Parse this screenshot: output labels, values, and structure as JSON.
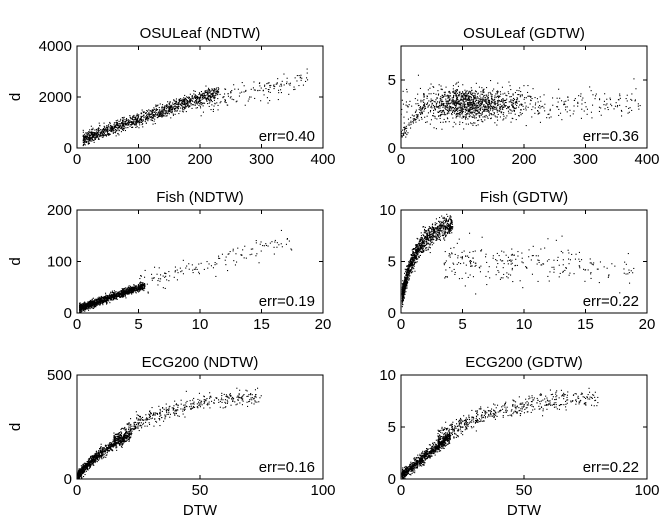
{
  "chart_data": [
    {
      "type": "scatter",
      "title": "OSULeaf (NDTW)",
      "xlabel": "",
      "ylabel": "d",
      "xlim": [
        0,
        400
      ],
      "ylim": [
        0,
        4000
      ],
      "xticks": [
        "0",
        "100",
        "200",
        "300",
        "400"
      ],
      "yticks": [
        "0",
        "2000",
        "4000"
      ],
      "annotation": "err=0.40",
      "point_count": 1400,
      "clusters": [
        {
          "kind": "band",
          "x": [
            10,
            230
          ],
          "y_at_x0": 250,
          "slope": 8.6,
          "spread": 220,
          "weight": 0.88
        },
        {
          "kind": "band",
          "x": [
            200,
            375
          ],
          "y_at_x0": 700,
          "slope": 5.2,
          "spread": 350,
          "weight": 0.12
        }
      ]
    },
    {
      "type": "scatter",
      "title": "OSULeaf (GDTW)",
      "xlabel": "",
      "ylabel": "",
      "xlim": [
        0,
        400
      ],
      "ylim": [
        0,
        7.5
      ],
      "xticks": [
        "0",
        "100",
        "200",
        "300",
        "400"
      ],
      "yticks": [
        "0",
        "5"
      ],
      "annotation": "err=0.36",
      "point_count": 1400,
      "clusters": [
        {
          "kind": "blob",
          "center": [
            110,
            3.2
          ],
          "radius": [
            75,
            1.1
          ],
          "weight": 0.82
        },
        {
          "kind": "band",
          "x": [
            0,
            40
          ],
          "y_at_x0": 1.0,
          "slope": 0.055,
          "spread": 0.45,
          "weight": 0.06
        },
        {
          "kind": "band",
          "x": [
            180,
            390
          ],
          "y_at_x0": 3.3,
          "slope": 0.0,
          "spread": 0.9,
          "weight": 0.12
        }
      ]
    },
    {
      "type": "scatter",
      "title": "Fish (NDTW)",
      "xlabel": "",
      "ylabel": "d",
      "xlim": [
        0,
        20
      ],
      "ylim": [
        0,
        200
      ],
      "xticks": [
        "0",
        "5",
        "10",
        "15",
        "20"
      ],
      "yticks": [
        "0",
        "100",
        "200"
      ],
      "annotation": "err=0.19",
      "point_count": 1400,
      "clusters": [
        {
          "kind": "band",
          "x": [
            0.2,
            5.5
          ],
          "y_at_x0": 8,
          "slope": 8.2,
          "spread": 6,
          "weight": 0.9
        },
        {
          "kind": "band",
          "x": [
            5,
            17.5
          ],
          "y_at_x0": 20,
          "slope": 7.0,
          "spread": 18,
          "weight": 0.1
        }
      ]
    },
    {
      "type": "scatter",
      "title": "Fish (GDTW)",
      "xlabel": "",
      "ylabel": "",
      "xlim": [
        0,
        20
      ],
      "ylim": [
        0,
        10
      ],
      "xticks": [
        "0",
        "5",
        "10",
        "15",
        "20"
      ],
      "yticks": [
        "0",
        "5",
        "10"
      ],
      "annotation": "err=0.22",
      "point_count": 1400,
      "clusters": [
        {
          "kind": "curve",
          "x": [
            0.1,
            4.2
          ],
          "a": 7.6,
          "k": 0.75,
          "base": 1.2,
          "spread": 0.9,
          "weight": 0.82
        },
        {
          "kind": "band",
          "x": [
            3.5,
            19
          ],
          "y_at_x0": 5.4,
          "slope": -0.05,
          "spread": 1.6,
          "weight": 0.18
        }
      ]
    },
    {
      "type": "scatter",
      "title": "ECG200 (NDTW)",
      "xlabel": "DTW",
      "ylabel": "d",
      "xlim": [
        0,
        100
      ],
      "ylim": [
        0,
        500
      ],
      "xticks": [
        "0",
        "50",
        "100"
      ],
      "yticks": [
        "0",
        "500"
      ],
      "annotation": "err=0.16",
      "point_count": 1400,
      "clusters": [
        {
          "kind": "curve",
          "x": [
            0.5,
            22
          ],
          "a": 320,
          "k": 0.045,
          "base": 10,
          "spread": 22,
          "weight": 0.65
        },
        {
          "kind": "curve",
          "x": [
            15,
            75
          ],
          "a": 420,
          "k": 0.04,
          "base": 0,
          "spread": 35,
          "weight": 0.35
        }
      ]
    },
    {
      "type": "scatter",
      "title": "ECG200 (GDTW)",
      "xlabel": "DTW",
      "ylabel": "",
      "xlim": [
        0,
        100
      ],
      "ylim": [
        0,
        10
      ],
      "xticks": [
        "0",
        "50",
        "100"
      ],
      "yticks": [
        "0",
        "5",
        "10"
      ],
      "annotation": "err=0.22",
      "point_count": 1400,
      "clusters": [
        {
          "kind": "band",
          "x": [
            0.5,
            20
          ],
          "y_at_x0": 0.3,
          "slope": 0.19,
          "spread": 0.45,
          "weight": 0.6
        },
        {
          "kind": "curve",
          "x": [
            15,
            80
          ],
          "a": 8.2,
          "k": 0.04,
          "base": 0,
          "spread": 0.8,
          "weight": 0.4
        }
      ]
    }
  ]
}
